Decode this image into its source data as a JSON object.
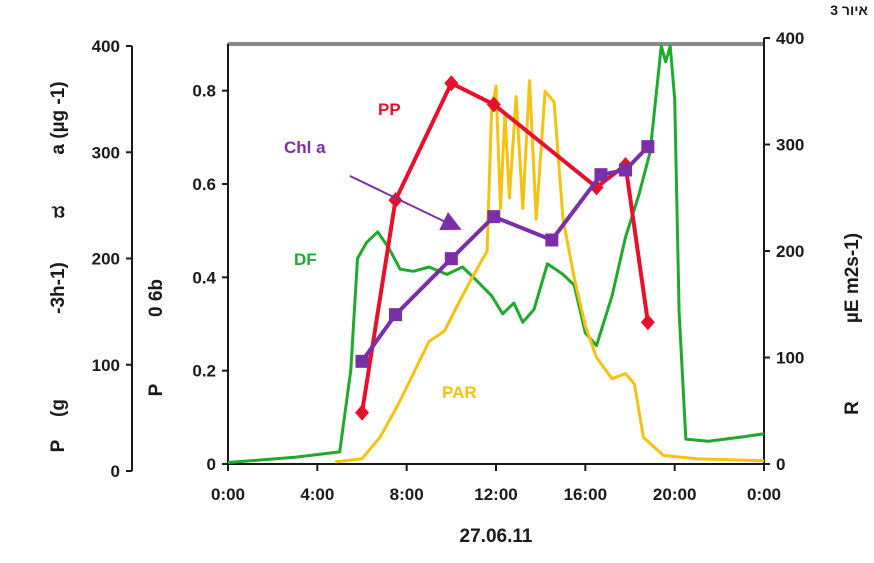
{
  "corner_label": "איור 3",
  "chart_data": {
    "type": "line",
    "xlabel": "27.06.11",
    "x_ticks": [
      "0:00",
      "4:00",
      "8:00",
      "12:00",
      "16:00",
      "20:00",
      "0:00"
    ],
    "xlim_hours": [
      0,
      24
    ],
    "left_outer_axis": {
      "label": "P (g...-3h-1) ... a (µg -1)",
      "label_parts": [
        "P",
        "(g",
        "-3h-1)",
        "a (µg -1)"
      ],
      "ticks": [
        "0",
        "100",
        "200",
        "300",
        "400"
      ],
      "ylim": [
        0,
        400
      ]
    },
    "left_inner_axis": {
      "label_parts": [
        "P",
        "0 6b"
      ],
      "ticks": [
        "0",
        "0.2",
        "0.4",
        "0.6",
        "0.8"
      ],
      "ylim": [
        0,
        0.9
      ]
    },
    "right_axis": {
      "label_parts": [
        "R",
        "µE m2s-1)"
      ],
      "ticks": [
        "0",
        "100",
        "200",
        "300",
        "400"
      ],
      "ylim": [
        0,
        400
      ]
    },
    "series": [
      {
        "name": "PP",
        "color": "#e8102a",
        "axis": "left_outer",
        "marker": "diamond",
        "points": [
          [
            6.0,
            55
          ],
          [
            7.5,
            255
          ],
          [
            10.0,
            365
          ],
          [
            11.9,
            345
          ],
          [
            16.5,
            267
          ],
          [
            17.8,
            288
          ],
          [
            18.8,
            140
          ]
        ]
      },
      {
        "name": "Chl a",
        "color": "#7b2fa6",
        "axis": "left_inner",
        "marker": "square",
        "points": [
          [
            6.0,
            0.22
          ],
          [
            7.5,
            0.32
          ],
          [
            10.0,
            0.44
          ],
          [
            11.9,
            0.53
          ],
          [
            14.5,
            0.48
          ],
          [
            16.7,
            0.62
          ],
          [
            17.8,
            0.63
          ],
          [
            18.8,
            0.68
          ]
        ]
      },
      {
        "name": "DF",
        "color": "#1faa2e",
        "axis": "left_outer",
        "marker": "none",
        "points": [
          [
            0,
            8
          ],
          [
            3,
            13
          ],
          [
            5.0,
            18
          ],
          [
            5.5,
            95
          ],
          [
            5.8,
            200
          ],
          [
            6.2,
            215
          ],
          [
            6.7,
            225
          ],
          [
            7.2,
            210
          ],
          [
            7.7,
            190
          ],
          [
            8.3,
            188
          ],
          [
            9.0,
            192
          ],
          [
            9.8,
            185
          ],
          [
            10.5,
            192
          ],
          [
            11.0,
            182
          ],
          [
            11.8,
            165
          ],
          [
            12.3,
            148
          ],
          [
            12.8,
            158
          ],
          [
            13.2,
            140
          ],
          [
            13.7,
            152
          ],
          [
            14.3,
            195
          ],
          [
            15.0,
            185
          ],
          [
            15.5,
            175
          ],
          [
            16.0,
            130
          ],
          [
            16.5,
            118
          ],
          [
            17.2,
            165
          ],
          [
            17.8,
            220
          ],
          [
            18.4,
            260
          ],
          [
            18.9,
            300
          ],
          [
            19.2,
            360
          ],
          [
            19.4,
            400
          ],
          [
            19.6,
            385
          ],
          [
            19.8,
            400
          ],
          [
            20.0,
            350
          ],
          [
            20.2,
            150
          ],
          [
            20.5,
            30
          ],
          [
            21.5,
            28
          ],
          [
            23.0,
            32
          ],
          [
            24,
            35
          ]
        ]
      },
      {
        "name": "PAR",
        "color": "#f5c211",
        "axis": "right",
        "marker": "none",
        "points": [
          [
            4.8,
            2
          ],
          [
            6.0,
            5
          ],
          [
            6.8,
            25
          ],
          [
            7.6,
            55
          ],
          [
            8.3,
            85
          ],
          [
            9.0,
            115
          ],
          [
            9.7,
            125
          ],
          [
            10.3,
            150
          ],
          [
            10.8,
            170
          ],
          [
            11.2,
            185
          ],
          [
            11.6,
            200
          ],
          [
            11.8,
            330
          ],
          [
            12.0,
            355
          ],
          [
            12.2,
            240
          ],
          [
            12.4,
            330
          ],
          [
            12.6,
            250
          ],
          [
            12.9,
            345
          ],
          [
            13.2,
            240
          ],
          [
            13.5,
            360
          ],
          [
            13.8,
            230
          ],
          [
            14.2,
            350
          ],
          [
            14.6,
            340
          ],
          [
            15.0,
            230
          ],
          [
            15.5,
            175
          ],
          [
            16.0,
            130
          ],
          [
            16.5,
            100
          ],
          [
            17.2,
            80
          ],
          [
            17.8,
            85
          ],
          [
            18.2,
            75
          ],
          [
            18.6,
            25
          ],
          [
            19.5,
            8
          ],
          [
            21,
            5
          ],
          [
            24,
            3
          ]
        ]
      }
    ],
    "legend_placement": "inline labels",
    "annotations": [
      {
        "text": "Chl a",
        "arrow": true
      }
    ]
  }
}
